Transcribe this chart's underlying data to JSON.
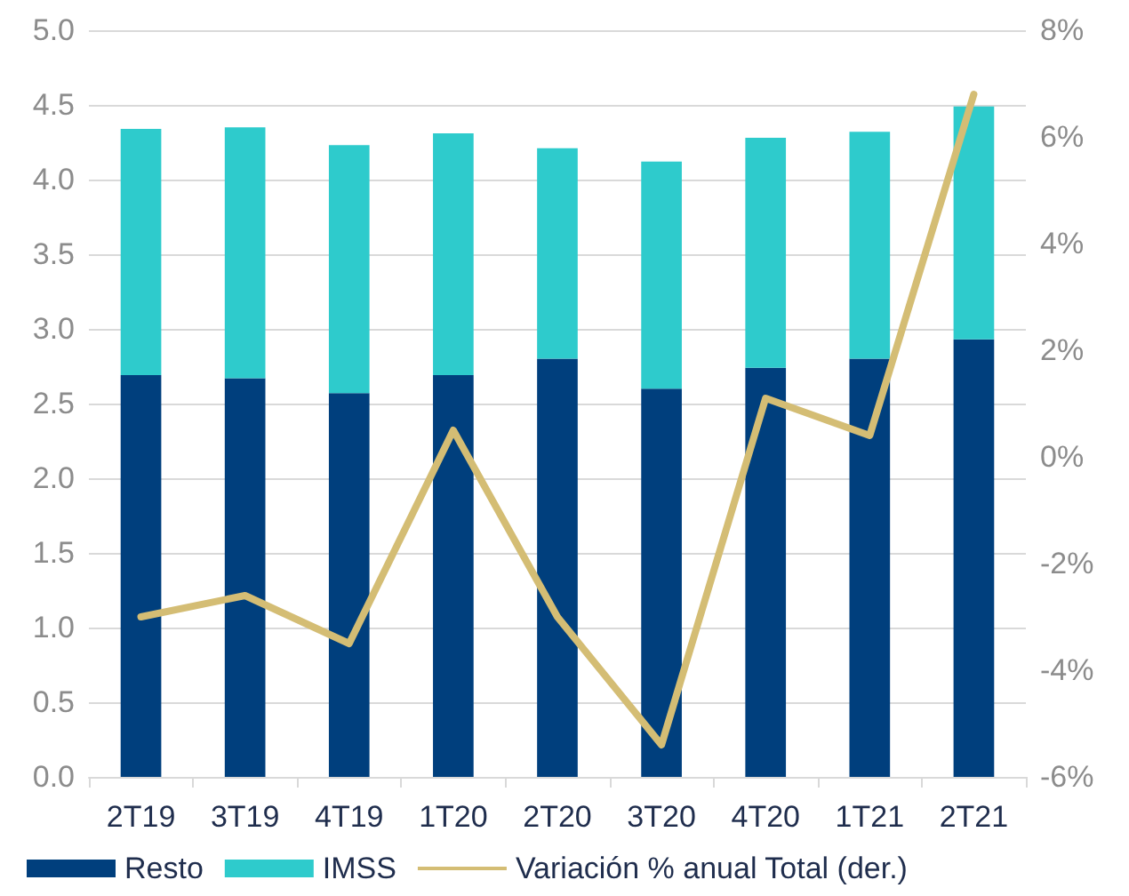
{
  "chart_data": {
    "type": "bar",
    "stacked": true,
    "categories": [
      "2T19",
      "3T19",
      "4T19",
      "1T20",
      "2T20",
      "3T20",
      "4T20",
      "1T21",
      "2T21"
    ],
    "series": [
      {
        "name": "Resto",
        "color": "#003f7d",
        "values": [
          2.69,
          2.67,
          2.57,
          2.69,
          2.8,
          2.6,
          2.74,
          2.8,
          2.93
        ]
      },
      {
        "name": "IMSS",
        "color": "#2ecbcc",
        "values": [
          1.65,
          1.68,
          1.66,
          1.62,
          1.41,
          1.52,
          1.54,
          1.52,
          1.56
        ]
      },
      {
        "name": "Variación % anual Total (der.)",
        "type": "line",
        "axis": "y2",
        "color": "#d4bd74",
        "values": [
          -3.0,
          -2.6,
          -3.5,
          0.5,
          -3.0,
          -5.4,
          1.1,
          0.4,
          6.8
        ]
      }
    ],
    "ylim": [
      0,
      5
    ],
    "yticks": [
      {
        "value": 0,
        "label": "0.0"
      },
      {
        "value": 0.5,
        "label": "0.5"
      },
      {
        "value": 1,
        "label": "1.0"
      },
      {
        "value": 1.5,
        "label": "1.5"
      },
      {
        "value": 2,
        "label": "2.0"
      },
      {
        "value": 2.5,
        "label": "2.5"
      },
      {
        "value": 3,
        "label": "3.0"
      },
      {
        "value": 3.5,
        "label": "3.5"
      },
      {
        "value": 4,
        "label": "4.0"
      },
      {
        "value": 4.5,
        "label": "4.5"
      },
      {
        "value": 5,
        "label": "5.0"
      }
    ],
    "y2lim": [
      -6,
      8
    ],
    "y2ticks": [
      {
        "value": -6,
        "label": "-6%"
      },
      {
        "value": -4,
        "label": "-4%"
      },
      {
        "value": -2,
        "label": "-2%"
      },
      {
        "value": 0,
        "label": "0%"
      },
      {
        "value": 2,
        "label": "2%"
      },
      {
        "value": 4,
        "label": "4%"
      },
      {
        "value": 6,
        "label": "6%"
      },
      {
        "value": 8,
        "label": "8%"
      }
    ],
    "grid": "y",
    "legend": "bottom",
    "marker": "none",
    "line_style": "solid"
  }
}
